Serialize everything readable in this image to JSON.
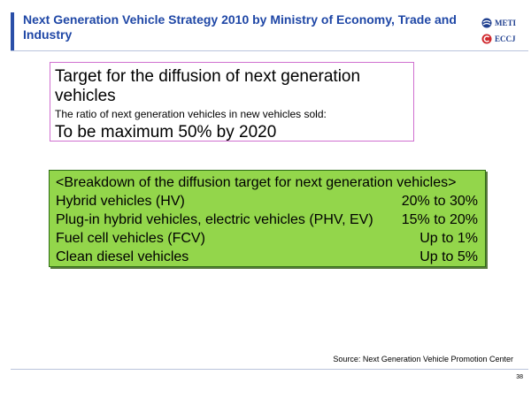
{
  "header": {
    "title": "Next Generation Vehicle Strategy 2010 by Ministry of Economy, Trade and Industry",
    "logos": [
      {
        "icon": "meti-logo-icon",
        "label": "METI",
        "color": "#1f3f8f"
      },
      {
        "icon": "eccj-logo-icon",
        "label": "ECCJ",
        "color": "#d0282d"
      }
    ]
  },
  "target": {
    "heading": "Target for the diffusion of next generation vehicles",
    "subtext": "The ratio of next generation vehicles in new vehicles sold:",
    "goal": "To be maximum 50% by 2020"
  },
  "breakdown": {
    "title": "<Breakdown of the diffusion target for next generation vehicles>",
    "rows": [
      {
        "label": "Hybrid vehicles (HV)",
        "value": "20% to 30%"
      },
      {
        "label": "Plug-in hybrid vehicles, electric vehicles (PHV, EV)",
        "value": "15% to 20%"
      },
      {
        "label": "Fuel cell vehicles (FCV)",
        "value": "Up to 1%"
      },
      {
        "label": "Clean diesel vehicles",
        "value": "Up to 5%"
      }
    ],
    "background_color": "#93d64b"
  },
  "footer": {
    "source": "Source: Next Generation Vehicle Promotion Center",
    "page_number": "38"
  }
}
